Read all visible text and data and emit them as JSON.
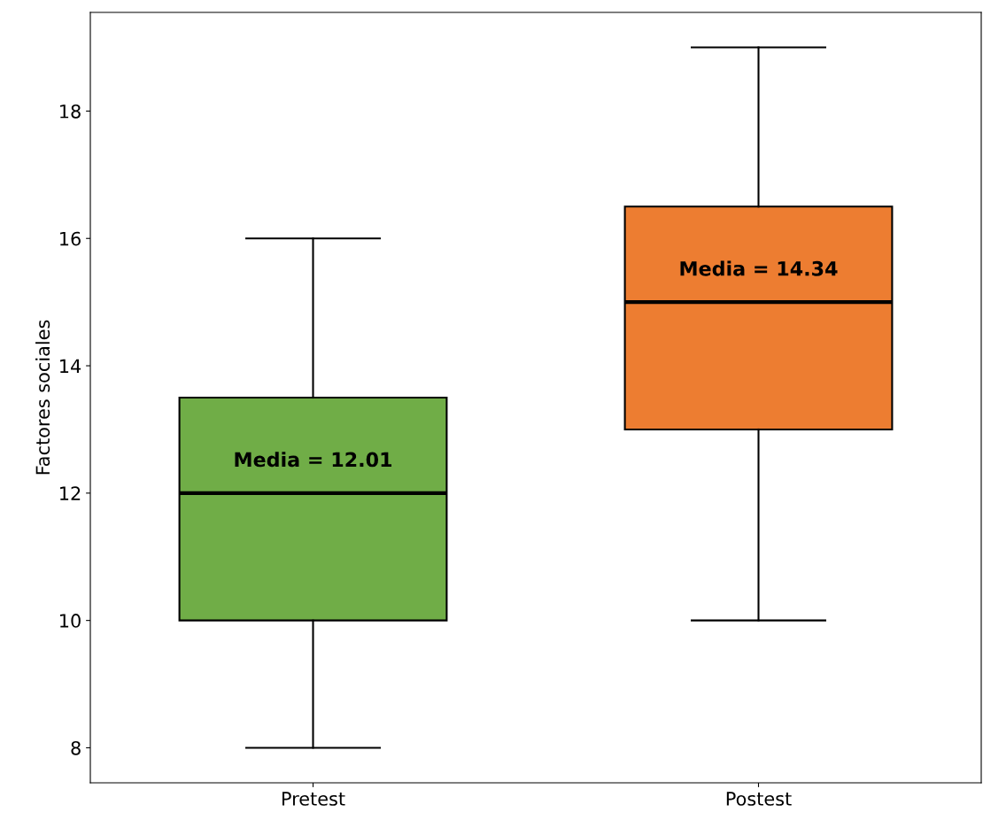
{
  "chart_data": {
    "type": "box",
    "ylabel": "Factores sociales",
    "categories": [
      "Pretest",
      "Postest"
    ],
    "boxes": [
      {
        "low": 8,
        "q1": 10,
        "median": 12,
        "q3": 13.5,
        "high": 16
      },
      {
        "low": 10,
        "q1": 13,
        "median": 15,
        "q3": 16.5,
        "high": 19
      }
    ],
    "colors": [
      "#70ad47",
      "#ed7d31"
    ],
    "ylim": [
      7.45,
      19.55
    ],
    "yticks": [
      8,
      10,
      12,
      14,
      16,
      18
    ],
    "annotations": [
      "Media = 12.01",
      "Media = 14.34"
    ],
    "grid": false
  }
}
